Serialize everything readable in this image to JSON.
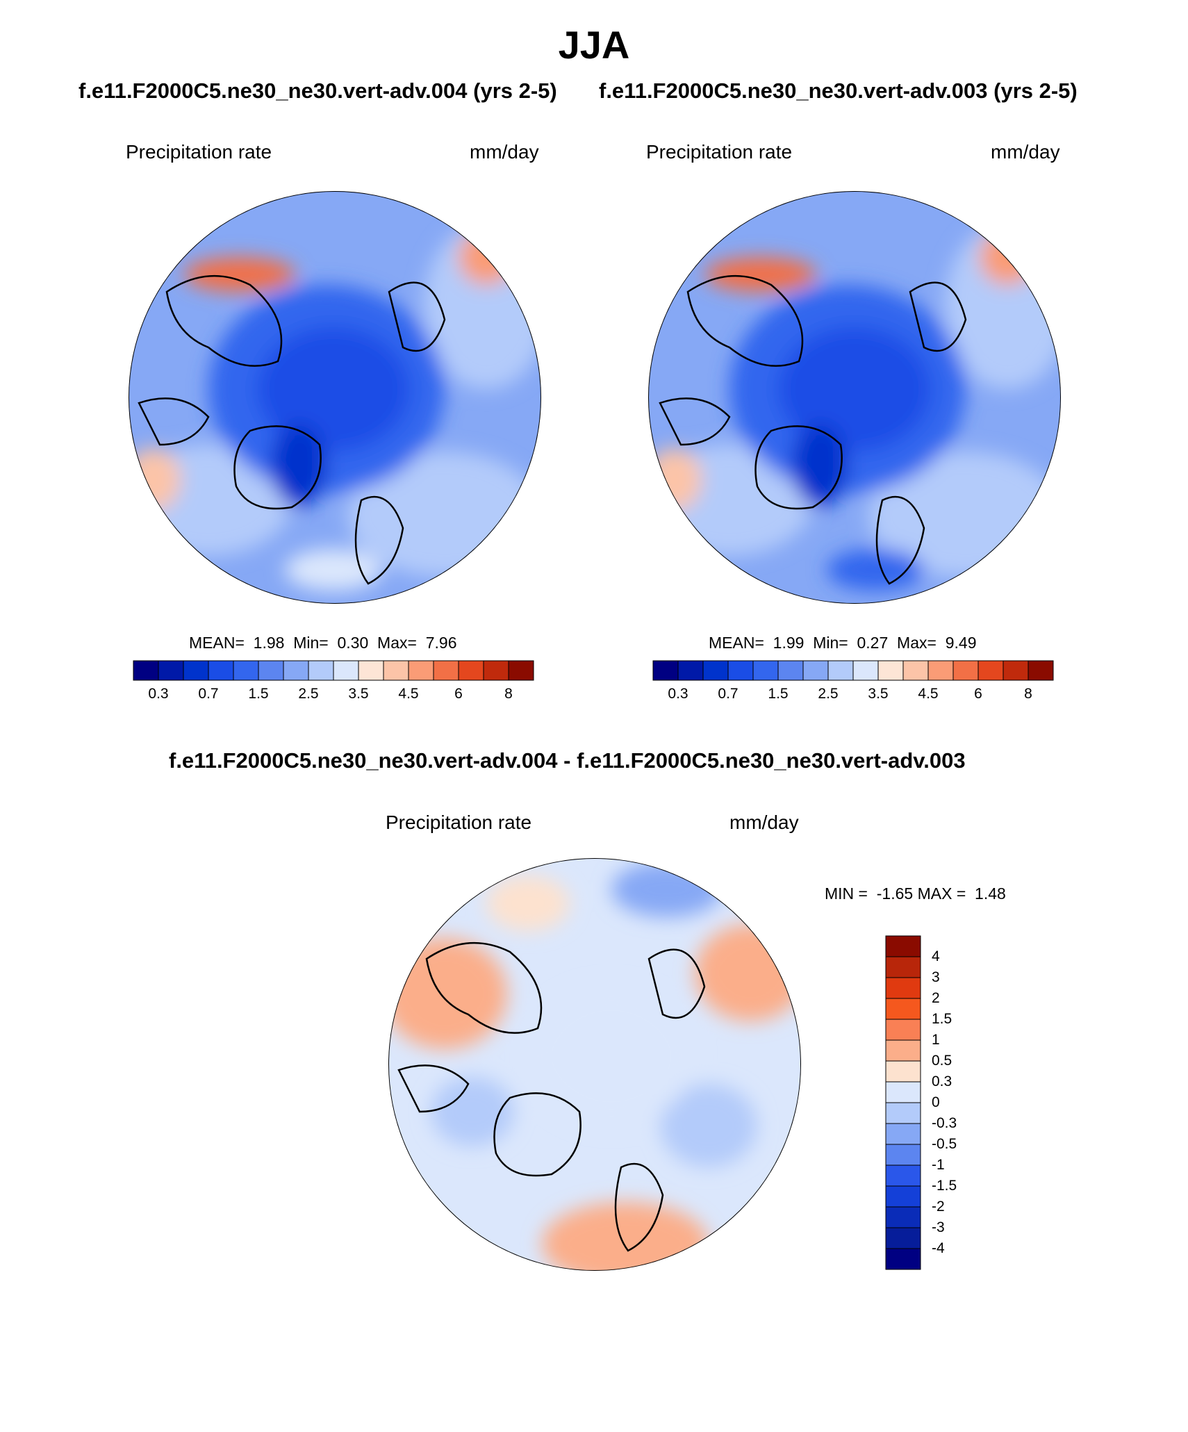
{
  "season": "JJA",
  "colors": {
    "seq": [
      "#000082",
      "#0019a8",
      "#0033cc",
      "#1a4de6",
      "#3366ee",
      "#5c85f0",
      "#86a8f5",
      "#b3cbfa",
      "#dbe7fc",
      "#fde5d6",
      "#fcc4a8",
      "#fa9c76",
      "#f27046",
      "#e4471e",
      "#c02a0c",
      "#8a0b00"
    ],
    "diff": [
      "#8a0b00",
      "#b8260a",
      "#e03a10",
      "#f5581e",
      "#f98055",
      "#fbae8a",
      "#fde2cf",
      "#dbe7fc",
      "#b3cbfa",
      "#86a8f5",
      "#5c85f0",
      "#2a57ea",
      "#1440d8",
      "#0a2cb8",
      "#061d9a",
      "#000082"
    ],
    "land_line": "#000000"
  },
  "panels": [
    {
      "title": "f.e11.F2000C5.ne30_ne30.vert-adv.004 (yrs 2-5)",
      "left_label": "Precipitation rate",
      "right_label": "mm/day",
      "mean_label": "MEAN=",
      "mean": "1.98",
      "min_label": "Min=",
      "min": "0.30",
      "max_label": "Max=",
      "max": "7.96",
      "colorbar_ticks": [
        "0.3",
        "0.7",
        "1.5",
        "2.5",
        "3.5",
        "4.5",
        "6",
        "8"
      ]
    },
    {
      "title": "f.e11.F2000C5.ne30_ne30.vert-adv.003 (yrs 2-5)",
      "left_label": "Precipitation rate",
      "right_label": "mm/day",
      "mean_label": "MEAN=",
      "mean": "1.99",
      "min_label": "Min=",
      "min": "0.27",
      "max_label": "Max=",
      "max": "9.49",
      "colorbar_ticks": [
        "0.3",
        "0.7",
        "1.5",
        "2.5",
        "3.5",
        "4.5",
        "6",
        "8"
      ]
    }
  ],
  "diff_panel": {
    "title": "f.e11.F2000C5.ne30_ne30.vert-adv.004 - f.e11.F2000C5.ne30_ne30.vert-adv.003",
    "left_label": "Precipitation rate",
    "right_label": "mm/day",
    "min_label": "MIN =",
    "min": "-1.65",
    "max_label": "MAX =",
    "max": "1.48",
    "colorbar_ticks": [
      "4",
      "3",
      "2",
      "1.5",
      "1",
      "0.5",
      "0.3",
      "0",
      "-0.3",
      "-0.5",
      "-1",
      "-1.5",
      "-2",
      "-3",
      "-4"
    ]
  }
}
